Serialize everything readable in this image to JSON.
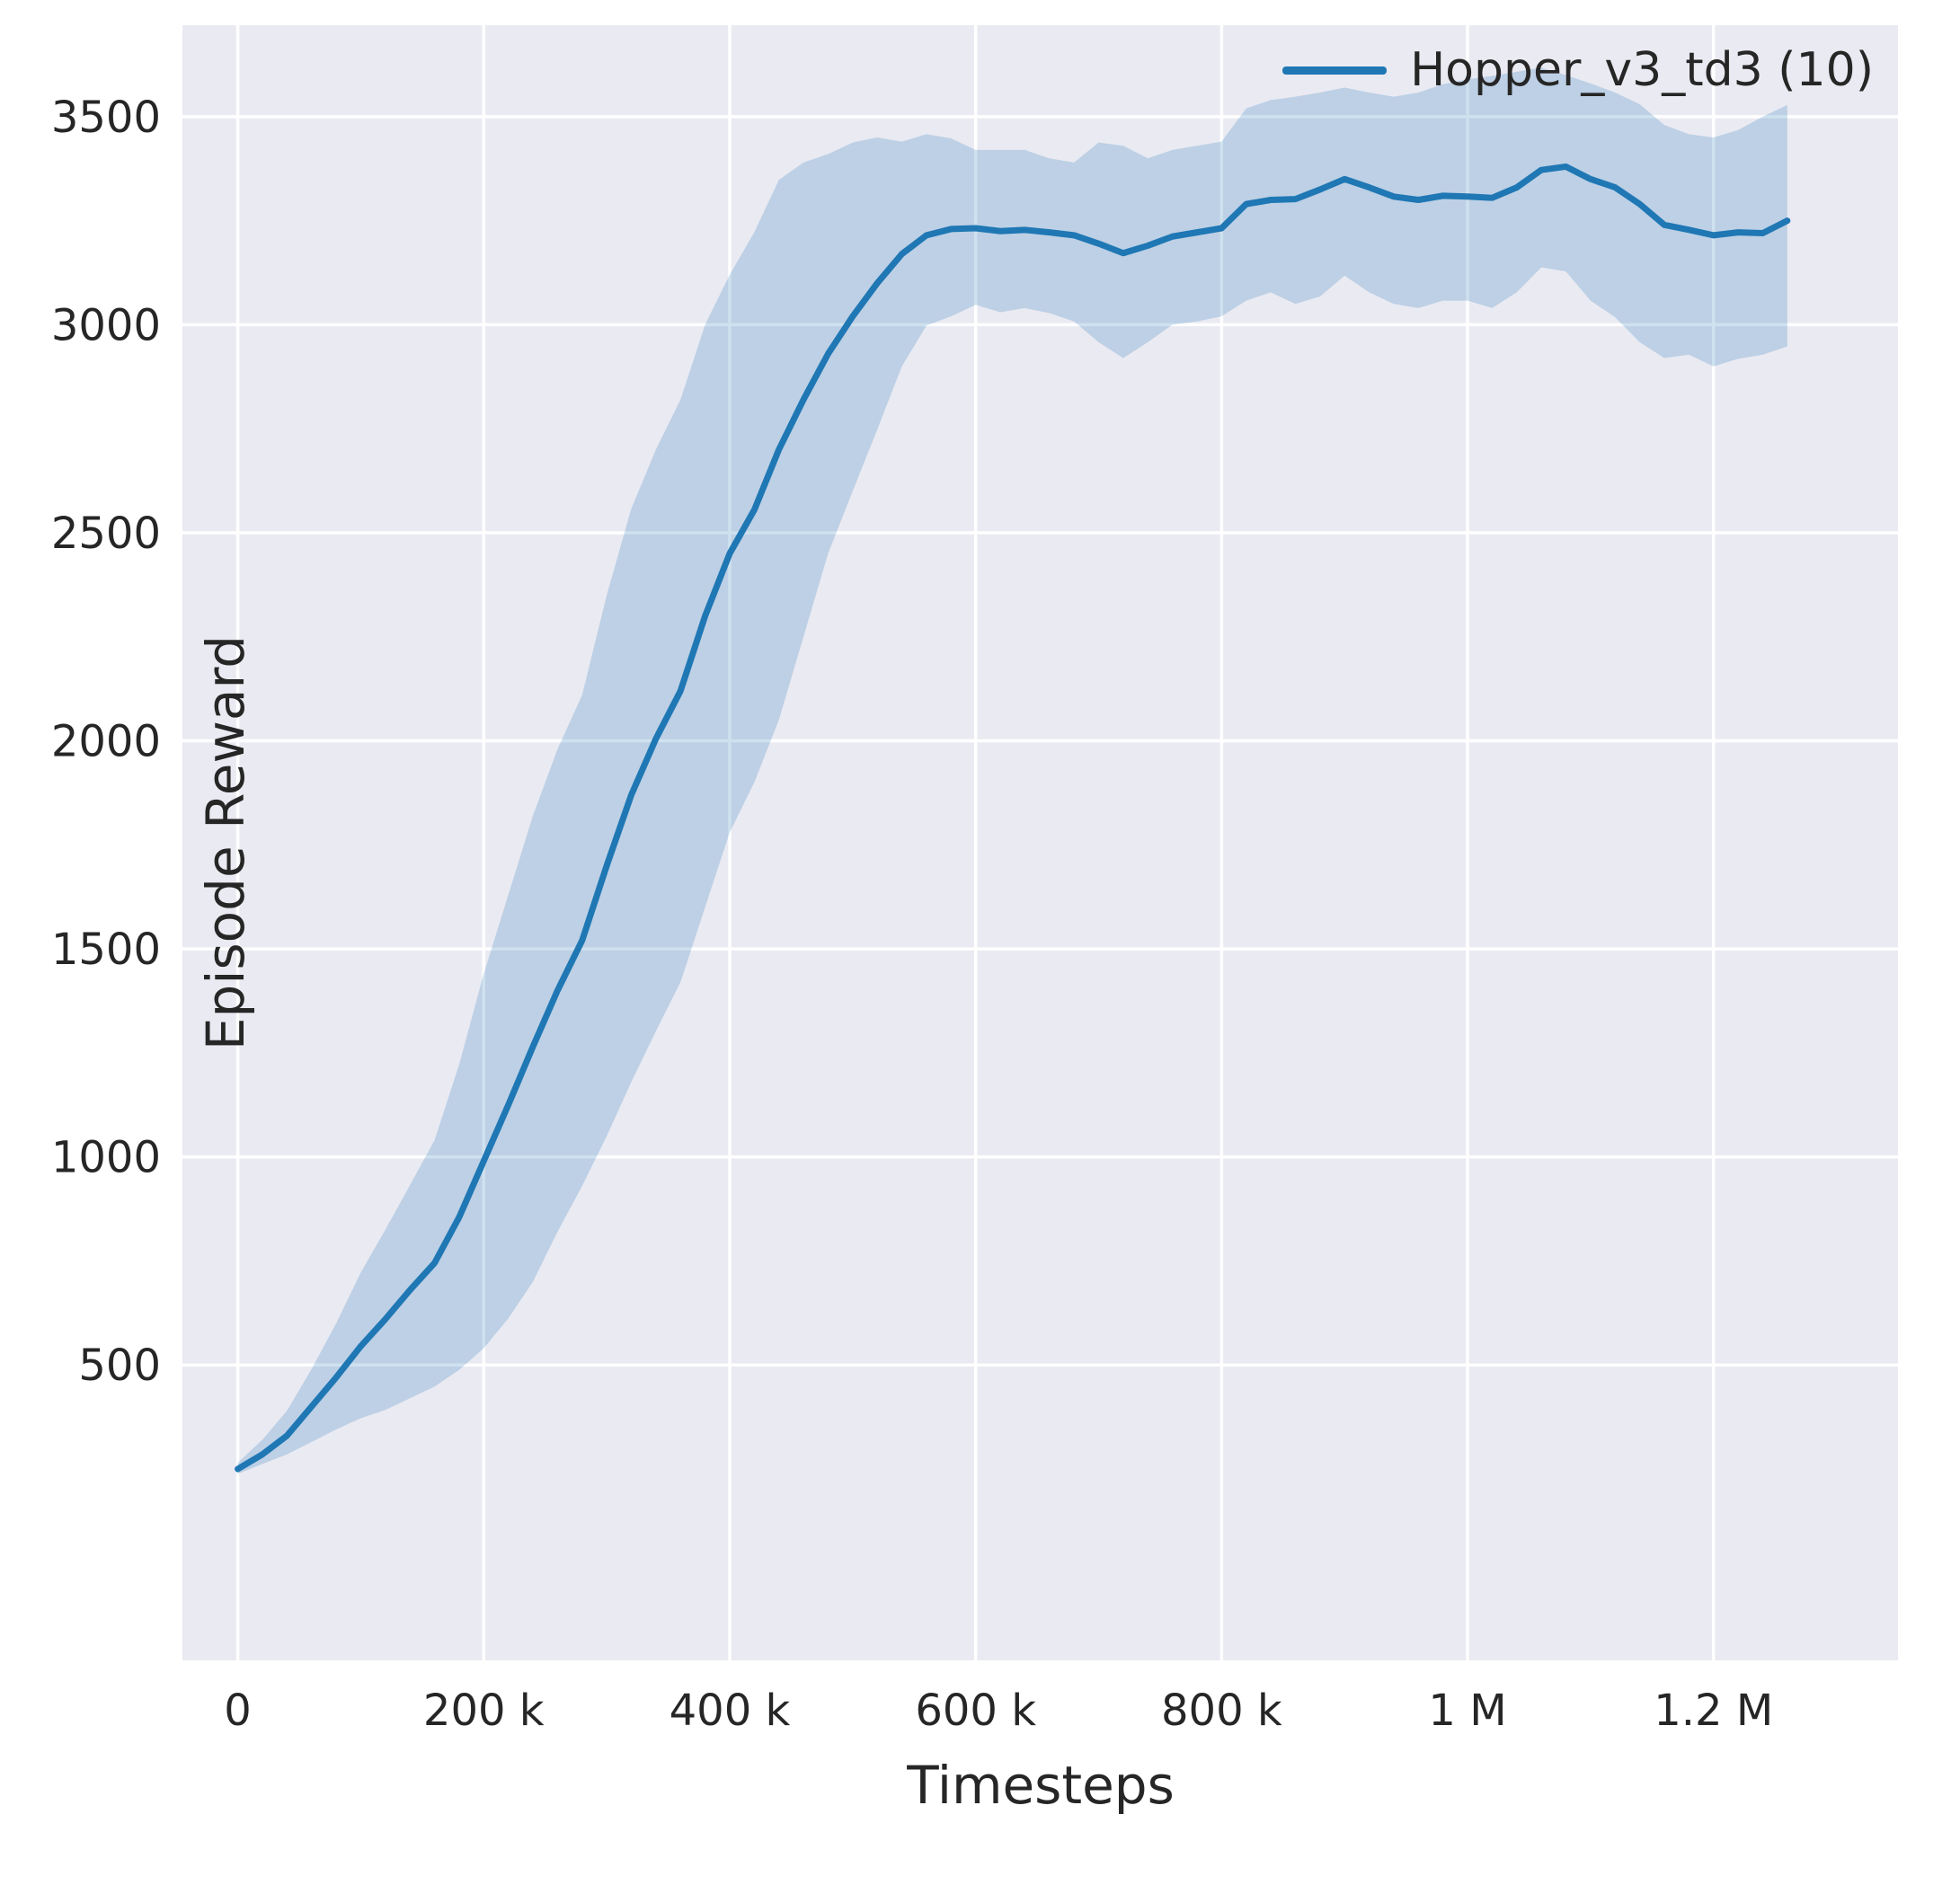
{
  "figure": {
    "background": "#ffffff",
    "axes_background": "#eaeaf2",
    "grid_color": "#ffffff",
    "text_color": "#262626"
  },
  "legend": {
    "label": "Hopper_v3_td3 (10)",
    "line_color": "#1f77b4"
  },
  "chart_data": {
    "type": "line",
    "title": "",
    "xlabel": "Timesteps",
    "ylabel": "Episode Reward",
    "grid": true,
    "legend_position": "upper right",
    "xlim": [
      -45000,
      1350000
    ],
    "ylim": [
      -210,
      3720
    ],
    "xtick_values": [
      0,
      200000,
      400000,
      600000,
      800000,
      1000000,
      1200000
    ],
    "xtick_labels": [
      "0",
      "200 k",
      "400 k",
      "600 k",
      "800 k",
      "1 M",
      "1.2 M"
    ],
    "ytick_values": [
      500,
      1000,
      1500,
      2000,
      2500,
      3000,
      3500
    ],
    "ytick_labels": [
      "500",
      "1000",
      "1500",
      "2000",
      "2500",
      "3000",
      "3500"
    ],
    "series": [
      {
        "name": "Hopper_v3_td3 (10)",
        "color": "#1f77b4",
        "band_color": "#1f77b4",
        "band_opacity": 0.22,
        "x": [
          0,
          20000,
          40000,
          60000,
          80000,
          100000,
          120000,
          140000,
          160000,
          180000,
          200000,
          220000,
          240000,
          260000,
          280000,
          300000,
          320000,
          340000,
          360000,
          380000,
          400000,
          420000,
          440000,
          460000,
          480000,
          500000,
          520000,
          540000,
          560000,
          580000,
          600000,
          620000,
          640000,
          660000,
          680000,
          700000,
          720000,
          740000,
          760000,
          780000,
          800000,
          820000,
          840000,
          860000,
          880000,
          900000,
          920000,
          940000,
          960000,
          980000,
          1000000,
          1020000,
          1040000,
          1060000,
          1080000,
          1100000,
          1120000,
          1140000,
          1160000,
          1180000,
          1200000,
          1220000,
          1240000,
          1260000
        ],
        "mean": [
          250,
          285,
          330,
          400,
          470,
          545,
          610,
          680,
          745,
          855,
          990,
          1125,
          1265,
          1400,
          1520,
          1700,
          1870,
          2005,
          2120,
          2300,
          2450,
          2555,
          2700,
          2820,
          2930,
          3020,
          3100,
          3170,
          3215,
          3230,
          3232,
          3225,
          3228,
          3222,
          3215,
          3195,
          3172,
          3190,
          3212,
          3222,
          3232,
          3290,
          3300,
          3302,
          3325,
          3350,
          3330,
          3308,
          3300,
          3310,
          3308,
          3305,
          3330,
          3372,
          3380,
          3350,
          3330,
          3290,
          3240,
          3228,
          3215,
          3222,
          3220,
          3250
        ],
        "lower": [
          238,
          262,
          285,
          315,
          345,
          372,
          392,
          420,
          448,
          488,
          540,
          612,
          700,
          820,
          930,
          1050,
          1180,
          1302,
          1420,
          1600,
          1780,
          1900,
          2050,
          2250,
          2450,
          2600,
          2748,
          2900,
          2998,
          3020,
          3048,
          3030,
          3040,
          3028,
          3008,
          2958,
          2920,
          2958,
          3000,
          3008,
          3020,
          3058,
          3078,
          3050,
          3068,
          3118,
          3078,
          3050,
          3040,
          3058,
          3058,
          3040,
          3078,
          3138,
          3128,
          3058,
          3018,
          2958,
          2920,
          2928,
          2900,
          2918,
          2928,
          2948
        ],
        "upper": [
          265,
          320,
          390,
          490,
          600,
          722,
          825,
          932,
          1040,
          1222,
          1440,
          1630,
          1820,
          1980,
          2110,
          2350,
          2558,
          2700,
          2820,
          3000,
          3120,
          3222,
          3348,
          3390,
          3410,
          3438,
          3450,
          3440,
          3458,
          3448,
          3420,
          3420,
          3420,
          3400,
          3390,
          3438,
          3430,
          3400,
          3420,
          3430,
          3440,
          3520,
          3540,
          3548,
          3558,
          3570,
          3558,
          3548,
          3558,
          3578,
          3590,
          3598,
          3608,
          3618,
          3600,
          3580,
          3558,
          3530,
          3480,
          3458,
          3450,
          3468,
          3500,
          3528
        ]
      }
    ]
  }
}
